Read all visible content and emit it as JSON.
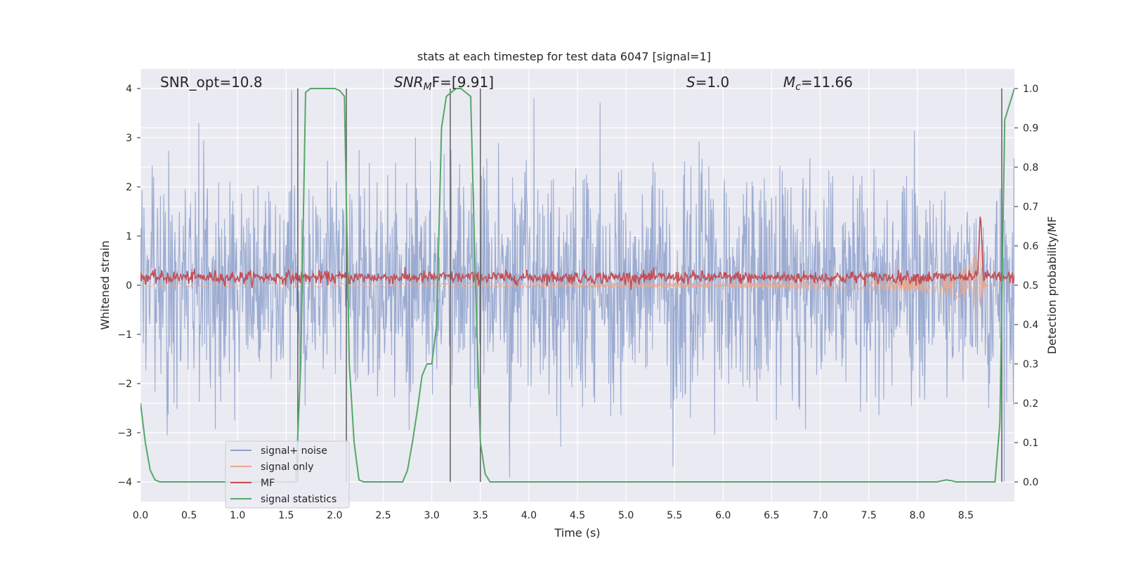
{
  "chart_data": {
    "type": "line",
    "title": "stats at each timestep for test data 6047 [signal=1]",
    "xlabel": "Time (s)",
    "ylabel": "Whitened strain",
    "ylabel_right": "Detection probability/MF",
    "xlim": [
      0.0,
      9.0
    ],
    "ylim": [
      -4.4,
      4.4
    ],
    "ylim_right": [
      -0.05,
      1.05
    ],
    "x_ticks": [
      "0.0",
      "0.5",
      "1.0",
      "1.5",
      "2.0",
      "2.5",
      "3.0",
      "3.5",
      "4.0",
      "4.5",
      "5.0",
      "5.5",
      "6.0",
      "6.5",
      "7.0",
      "7.5",
      "8.0",
      "8.5"
    ],
    "y_ticks": [
      "−4",
      "−3",
      "−2",
      "−1",
      "0",
      "1",
      "2",
      "3",
      "4"
    ],
    "y_ticks_right": [
      "0.0",
      "0.1",
      "0.2",
      "0.3",
      "0.4",
      "0.5",
      "0.6",
      "0.7",
      "0.8",
      "0.9",
      "1.0"
    ],
    "grid": true,
    "annotations": {
      "snr_opt": "SNR_opt=10.8",
      "snr_mf_main": "SNR",
      "snr_mf_sub": "M",
      "snr_mf_rest": "F=[9.91]",
      "s_main": "S",
      "s_rest": "=1.0",
      "mc_main": "M",
      "mc_sub": "c",
      "mc_rest": "=11.66"
    },
    "detection_boundaries_s": [
      1.62,
      2.12,
      3.19,
      3.5,
      8.87
    ],
    "series": [
      {
        "name": "signal+ noise",
        "color": "#8da0cb",
        "description": "whitened strain (noise dominated), values ~ ±4"
      },
      {
        "name": "signal only",
        "color": "#e8a98d",
        "description": "chirp growing toward merger at ~8.65 s",
        "merger_time": 8.65,
        "peak_amplitude": 1.5
      },
      {
        "name": "MF",
        "color": "#c44e52",
        "description": "matched filter output on right axis, ~0.52 baseline, peak ~0.69 at 8.65 s",
        "baseline": 0.52,
        "peak": 0.69,
        "peak_time": 8.65
      },
      {
        "name": "signal statistics",
        "color": "#55a868",
        "axis": "right",
        "x": [
          0.0,
          0.05,
          0.1,
          0.15,
          0.2,
          0.5,
          1.0,
          1.5,
          1.6,
          1.65,
          1.7,
          1.75,
          1.8,
          2.0,
          2.05,
          2.1,
          2.15,
          2.2,
          2.25,
          2.3,
          2.35,
          2.4,
          2.5,
          2.6,
          2.7,
          2.75,
          2.8,
          2.85,
          2.9,
          2.95,
          3.0,
          3.05,
          3.1,
          3.15,
          3.2,
          3.25,
          3.3,
          3.35,
          3.4,
          3.45,
          3.5,
          3.55,
          3.6,
          3.65,
          3.7,
          3.75,
          4.0,
          5.0,
          6.0,
          7.0,
          8.0,
          8.2,
          8.3,
          8.35,
          8.4,
          8.5,
          8.6,
          8.7,
          8.8,
          8.85,
          8.9,
          9.0
        ],
        "y": [
          0.2,
          0.1,
          0.03,
          0.005,
          0.0,
          0.0,
          0.0,
          0.0,
          0.0,
          0.3,
          0.99,
          1.0,
          1.0,
          1.0,
          0.995,
          0.98,
          0.3,
          0.1,
          0.005,
          0.0,
          0.0,
          0.0,
          0.0,
          0.0,
          0.0,
          0.03,
          0.1,
          0.18,
          0.27,
          0.3,
          0.3,
          0.4,
          0.9,
          0.98,
          0.99,
          1.0,
          1.0,
          0.99,
          0.98,
          0.5,
          0.1,
          0.02,
          0.0,
          0.0,
          0.0,
          0.0,
          0.0,
          0.0,
          0.0,
          0.0,
          0.0,
          0.0,
          0.005,
          0.003,
          0.0,
          0.0,
          0.0,
          0.0,
          0.0,
          0.15,
          0.92,
          1.0
        ]
      }
    ],
    "legend": {
      "placement": "lower-left",
      "entries": [
        "signal+ noise",
        "signal only",
        "MF",
        "signal statistics"
      ]
    }
  }
}
